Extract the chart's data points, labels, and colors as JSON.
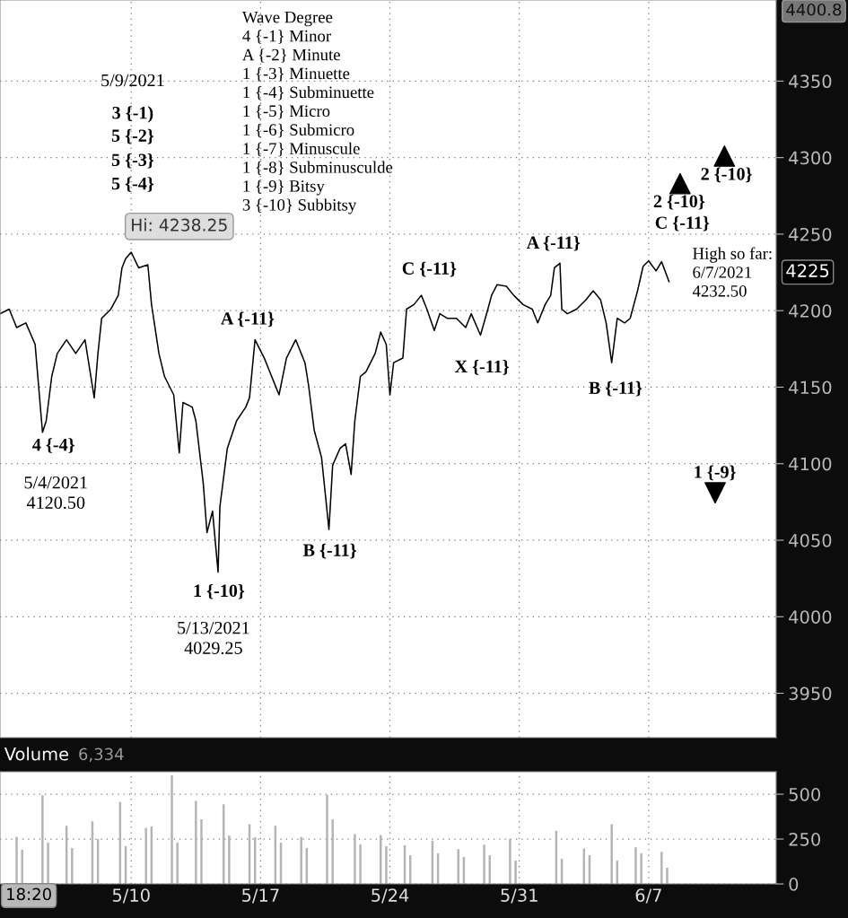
{
  "chart_data": [
    {
      "type": "line",
      "x": [
        "2021-05-02T21:36",
        "2021-05-03T09:36",
        "2021-05-03T19:12",
        "2021-05-04T07:12",
        "2021-05-04T19:12",
        "2021-05-05T04:48",
        "2021-05-05T09:36",
        "2021-05-05T16:48",
        "2021-05-06T00:00",
        "2021-05-06T12:00",
        "2021-05-07T00:00",
        "2021-05-07T12:00",
        "2021-05-08T00:00",
        "2021-05-08T04:48",
        "2021-05-08T09:36",
        "2021-05-08T21:36",
        "2021-05-09T07:12",
        "2021-05-09T12:00",
        "2021-05-09T16:48",
        "2021-05-10T00:00",
        "2021-05-10T09:36",
        "2021-05-10T21:36",
        "2021-05-11T02:24",
        "2021-05-11T12:00",
        "2021-05-11T19:12",
        "2021-05-12T07:12",
        "2021-05-12T14:24",
        "2021-05-12T19:12",
        "2021-05-13T07:12",
        "2021-05-13T12:00",
        "2021-05-13T21:36",
        "2021-05-14T02:24",
        "2021-05-14T09:36",
        "2021-05-14T16:48",
        "2021-05-14T19:12",
        "2021-05-15T04:48",
        "2021-05-15T16:48",
        "2021-05-16T04:48",
        "2021-05-16T09:36",
        "2021-05-16T16:48",
        "2021-05-17T04:48",
        "2021-05-17T16:48",
        "2021-05-18T00:00",
        "2021-05-18T09:36",
        "2021-05-18T21:36",
        "2021-05-19T09:36",
        "2021-05-19T14:24",
        "2021-05-19T21:36",
        "2021-05-20T07:12",
        "2021-05-20T16:48",
        "2021-05-20T21:36",
        "2021-05-21T07:12",
        "2021-05-21T14:24",
        "2021-05-21T21:36",
        "2021-05-22T02:24",
        "2021-05-22T09:36",
        "2021-05-22T16:48",
        "2021-05-23T04:48",
        "2021-05-23T12:00",
        "2021-05-23T19:12",
        "2021-05-24T00:00",
        "2021-05-24T04:48",
        "2021-05-24T16:48",
        "2021-05-24T21:36",
        "2021-05-25T07:12",
        "2021-05-25T16:48",
        "2021-05-26T00:00",
        "2021-05-26T09:36",
        "2021-05-26T16:48",
        "2021-05-27T02:24",
        "2021-05-27T14:24",
        "2021-05-28T02:24",
        "2021-05-28T09:36",
        "2021-05-28T21:36",
        "2021-05-29T07:12",
        "2021-05-29T12:00",
        "2021-05-29T19:12",
        "2021-05-30T07:12",
        "2021-05-30T16:48",
        "2021-05-31T04:48",
        "2021-05-31T16:48",
        "2021-06-01T00:00",
        "2021-06-01T09:36",
        "2021-06-01T16:48",
        "2021-06-01T21:36",
        "2021-06-02T04:48",
        "2021-06-02T07:12",
        "2021-06-02T14:24",
        "2021-06-03T02:24",
        "2021-06-03T14:24",
        "2021-06-04T00:00",
        "2021-06-04T09:36",
        "2021-06-04T16:48",
        "2021-06-05T00:00",
        "2021-06-05T07:12",
        "2021-06-05T16:48",
        "2021-06-06T00:00",
        "2021-06-06T09:36",
        "2021-06-06T16:48",
        "2021-06-07T00:00",
        "2021-06-07T09:36",
        "2021-06-07T16:48",
        "2021-06-08T02:24"
      ],
      "series": [
        {
          "color": "#000000",
          "values": [
            4198,
            4201,
            4189,
            4192,
            4178,
            4120.5,
            4128,
            4157,
            4172,
            4181,
            4172,
            4181,
            4143,
            4172,
            4195,
            4201,
            4210,
            4228,
            4234,
            4238.25,
            4228,
            4230,
            4204,
            4172,
            4157,
            4145,
            4107,
            4140,
            4137,
            4128,
            4087,
            4055,
            4069,
            4029.25,
            4072,
            4110,
            4128,
            4137,
            4143,
            4181,
            4169,
            4154,
            4145,
            4169,
            4181,
            4166,
            4151,
            4122,
            4104,
            4057,
            4099,
            4110,
            4113,
            4093,
            4128,
            4157,
            4160,
            4172,
            4186,
            4178,
            4145,
            4166,
            4169,
            4201,
            4204,
            4210,
            4201,
            4187,
            4198,
            4195,
            4195,
            4189,
            4198,
            4184,
            4201,
            4210,
            4217,
            4216,
            4210,
            4204,
            4201,
            4192,
            4204,
            4210,
            4228,
            4231,
            4201,
            4198,
            4201,
            4207,
            4213,
            4207,
            4192,
            4166,
            4195,
            4192,
            4195,
            4213,
            4229,
            4232.5,
            4226,
            4232,
            4219
          ]
        },
        {
          "type": "scatter",
          "marker": "triangle",
          "color": "#000000",
          "x": [
            "2021-06-08T16:48",
            "2021-06-11T02:24"
          ],
          "values": [
            4283,
            4301
          ]
        },
        {
          "type": "scatter",
          "marker": "triangle_down",
          "color": "#000000",
          "x": [
            "2021-06-10T14:24"
          ],
          "values": [
            4081
          ]
        }
      ],
      "xlim": [
        "2021-05-02T21:36",
        "2021-06-13T21:36"
      ],
      "ylim": [
        3921,
        4403
      ],
      "xticks": [
        {
          "value": "2021-05-10",
          "label": null
        },
        {
          "value": "2021-05-17",
          "label": null
        },
        {
          "value": "2021-05-24",
          "label": null
        },
        {
          "value": "2021-05-31",
          "label": null
        },
        {
          "value": "2021-06-07",
          "label": null
        }
      ],
      "yticks": [
        3950,
        4000,
        4050,
        4100,
        4150,
        4200,
        4250,
        4300,
        4350
      ],
      "tick_labels": "y",
      "grid": true,
      "annotations": [
        "Wave Degree\n4 {-1} Minor\nA {-2} Minute\n1 {-3} Minuette\n1 {-4} Subminuette\n1 {-5} Micro\n1 {-6} Submicro\n1 {-7} Minuscule\n1 {-8} Subminusculde\n1 {-9} Bitsy\n3 {-10} Subbitsy",
        "4400.8",
        "4225",
        "Hi: 4238.25",
        "5/9/2021",
        "3 {-1)",
        "5 {-2}",
        "5 {-3}",
        "5 {-4}",
        "4 {-4}",
        "5/4/2021\n4120.50",
        "1 {-10}",
        "5/13/2021\n4029.25",
        "A {-11}",
        "B {-11}",
        "C {-11}",
        "X {-11}",
        "A {-11}",
        "B {-11}",
        "2 {-10}",
        "C {-11}",
        "2 {-10}",
        "High so far:\n6/7/2021\n4232.50",
        "1 {-9}"
      ]
    },
    {
      "type": "bar",
      "series": [
        {
          "color": "#b4b4b4",
          "x": [
            "2021-05-03T19:12",
            "2021-05-05T04:48",
            "2021-05-06T12:00",
            "2021-05-07T21:36",
            "2021-05-09T09:36",
            "2021-05-10T19:12",
            "2021-05-12T04:48",
            "2021-05-13T12:00",
            "2021-05-15T00:00",
            "2021-05-16T09:36",
            "2021-05-17T19:12",
            "2021-05-19T04:48",
            "2021-05-20T14:24",
            "2021-05-22T02:24",
            "2021-05-23T12:00",
            "2021-05-24T19:12",
            "2021-05-26T07:12",
            "2021-05-27T16:48",
            "2021-05-29T02:24",
            "2021-05-30T12:00",
            "2021-06-02T00:00",
            "2021-06-03T12:00",
            "2021-06-05T00:00",
            "2021-06-06T07:12",
            "2021-06-07T16:48"
          ],
          "values": [
            262,
            494,
            324,
            349,
            457,
            312,
            605,
            463,
            444,
            333,
            324,
            262,
            497,
            278,
            272,
            216,
            241,
            194,
            219,
            250,
            296,
            198,
            333,
            204,
            179
          ]
        },
        {
          "color": "#b4b4b4",
          "x": [
            "2021-05-04T02:24",
            "2021-05-05T12:00",
            "2021-05-06T19:12",
            "2021-05-08T04:48",
            "2021-05-09T16:48",
            "2021-05-11T02:24",
            "2021-05-12T12:00",
            "2021-05-13T19:12",
            "2021-05-15T07:12",
            "2021-05-16T16:48",
            "2021-05-18T02:24",
            "2021-05-19T12:00",
            "2021-05-20T21:36",
            "2021-05-22T09:36",
            "2021-05-23T19:12",
            "2021-05-25T02:24",
            "2021-05-26T14:24",
            "2021-05-28T00:00",
            "2021-05-29T09:36",
            "2021-05-30T19:12",
            "2021-06-02T07:12",
            "2021-06-03T19:12",
            "2021-06-05T07:12",
            "2021-06-06T14:24",
            "2021-06-08T00:00"
          ],
          "values": [
            190,
            230,
            200,
            250,
            210,
            320,
            230,
            360,
            270,
            260,
            230,
            200,
            360,
            220,
            210,
            160,
            170,
            150,
            160,
            130,
            140,
            160,
            130,
            170,
            90
          ]
        }
      ],
      "xlim": [
        "2021-05-02T21:36",
        "2021-06-13T21:36"
      ],
      "ylim": [
        0,
        625
      ],
      "xticks": [
        {
          "value": "2021-05-10",
          "label": "5/10"
        },
        {
          "value": "2021-05-17",
          "label": "5/17"
        },
        {
          "value": "2021-05-24",
          "label": "5/24"
        },
        {
          "value": "2021-05-31",
          "label": "5/31"
        },
        {
          "value": "2021-06-07",
          "label": "6/7"
        }
      ],
      "yticks": [
        0,
        250,
        500
      ],
      "grid": true,
      "annotations": [
        "Volume",
        "6,334",
        "18:20"
      ]
    }
  ]
}
